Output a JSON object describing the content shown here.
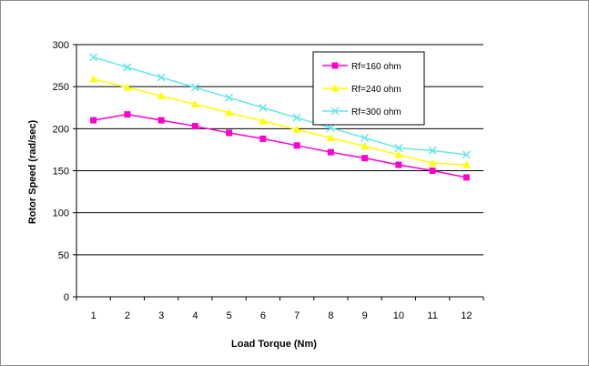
{
  "chart_data": {
    "type": "line",
    "title": "",
    "xlabel": "Load Torque (Nm)",
    "ylabel": "Rotor Speed (rad/sec)",
    "x": [
      1,
      2,
      3,
      4,
      5,
      6,
      7,
      8,
      9,
      10,
      11,
      12
    ],
    "ylim": [
      0,
      300
    ],
    "yticks": [
      0,
      50,
      100,
      150,
      200,
      250,
      300
    ],
    "grid": true,
    "legend_position": "top-right",
    "series": [
      {
        "name": "Rf=160 ohm",
        "color": "#ff00cc",
        "marker": "square",
        "values": [
          210,
          217,
          210,
          203,
          195,
          188,
          180,
          172,
          165,
          157,
          150,
          142
        ]
      },
      {
        "name": "Rf=240 ohm",
        "color": "#ffff00",
        "marker": "triangle",
        "values": [
          259,
          249,
          239,
          229,
          219,
          209,
          199,
          189,
          179,
          169,
          159,
          157
        ]
      },
      {
        "name": "Rf=300 ohm",
        "color": "#66e6e6",
        "marker": "x",
        "values": [
          285,
          273,
          261,
          249,
          237,
          225,
          213,
          201,
          189,
          177,
          174,
          169
        ]
      }
    ]
  }
}
